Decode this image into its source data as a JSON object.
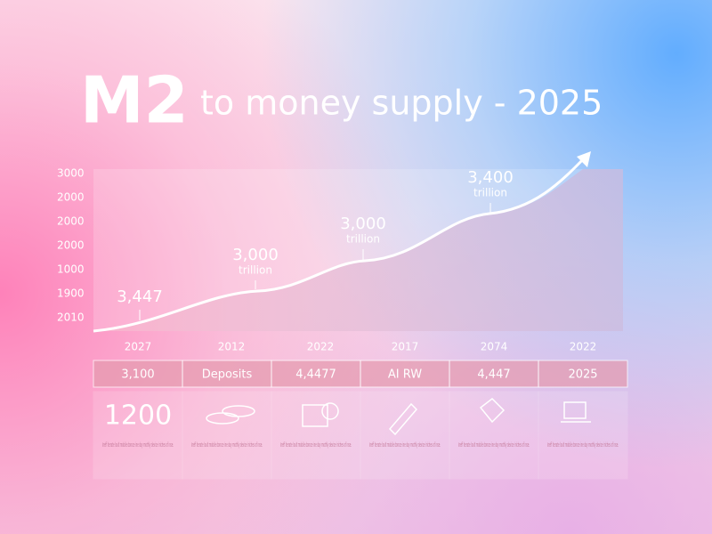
{
  "header": {
    "title_main": "M2",
    "title_rest": "to money supply - 2025"
  },
  "chart": {
    "y_labels": [
      "3000",
      "2000",
      "2000",
      "2000",
      "1000",
      "1900",
      "2010"
    ],
    "x_labels": [
      "2027",
      "2012",
      "2022",
      "2017",
      "2074",
      "2022"
    ],
    "annotations": [
      {
        "value": "3,447"
      },
      {
        "value": "3,000",
        "unit": "trillion"
      },
      {
        "value": "3,000",
        "unit": "trillion"
      },
      {
        "value": "3,400",
        "unit": "trillion"
      }
    ]
  },
  "table": {
    "header": [
      "3,100",
      "Deposits",
      "4,4477",
      "AI RW",
      "4,447",
      "2025"
    ],
    "first_card": "1200",
    "notes": [
      "Ineff iterate loult mobile doroce ine day mothly device iriches of inse.",
      "Ineff iterate loult mobile doroce ine day mothly device iriches of inse.",
      "Ineff iterate loult mobile doroce ine day mothly device iriches of inse.",
      "Ineff iterate loult mobile doroce ine day mothly device iriches of inse.",
      "Ineff iterate loult mobile doroce ine day mothly device iriches of inse.",
      "Ineff iterate loult mobile doroce ine day mothly device iriches of inse."
    ]
  }
}
